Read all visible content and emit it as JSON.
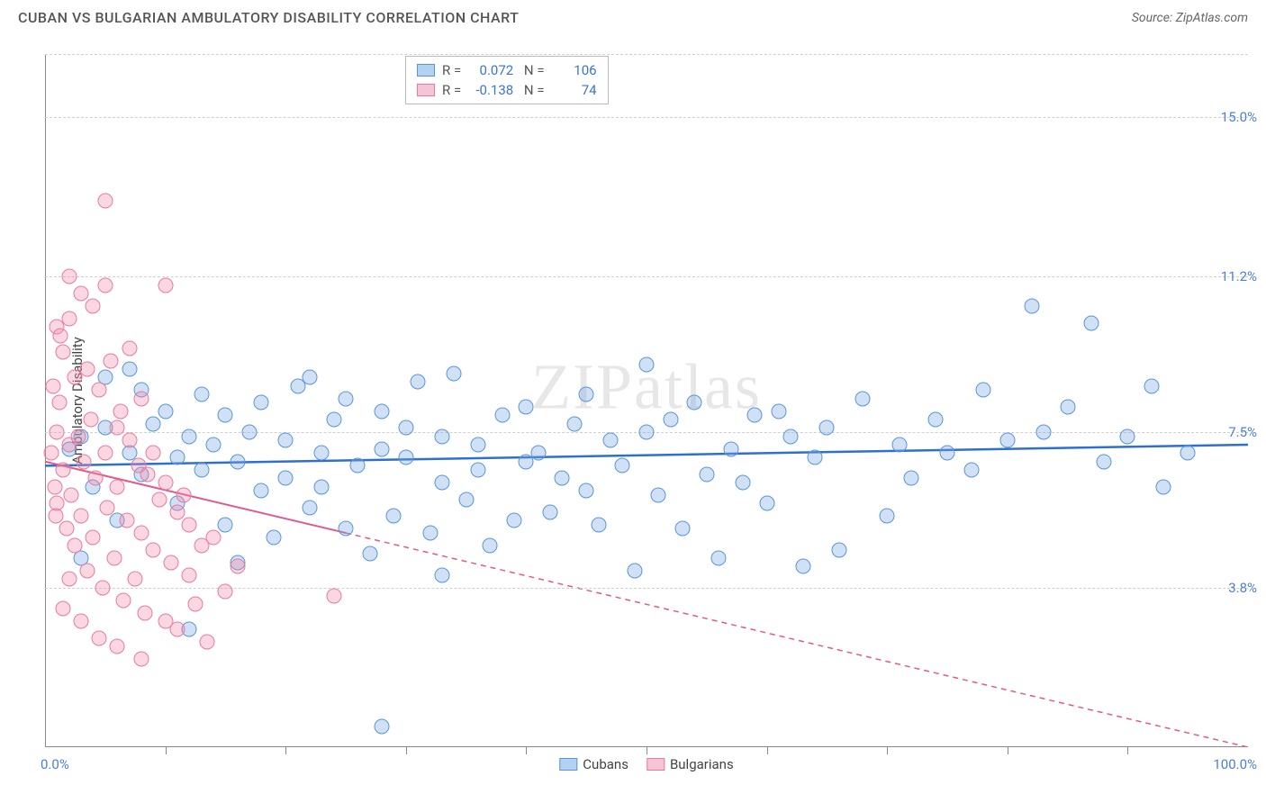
{
  "header": {
    "title": "CUBAN VS BULGARIAN AMBULATORY DISABILITY CORRELATION CHART",
    "source_prefix": "Source: ",
    "source_name": "ZipAtlas.com"
  },
  "chart": {
    "type": "scatter",
    "y_axis_title": "Ambulatory Disability",
    "xlim": [
      0,
      100
    ],
    "ylim": [
      0,
      16.5
    ],
    "x_label_min": "0.0%",
    "x_label_max": "100.0%",
    "x_ticks_pct": [
      10,
      20,
      30,
      40,
      50,
      60,
      70,
      80,
      90
    ],
    "y_gridlines": [
      {
        "value": 3.8,
        "label": "3.8%"
      },
      {
        "value": 7.5,
        "label": "7.5%"
      },
      {
        "value": 11.2,
        "label": "11.2%"
      },
      {
        "value": 15.0,
        "label": "15.0%"
      }
    ],
    "background_color": "#ffffff",
    "grid_color": "#d0d0d0",
    "marker_radius": 8.5,
    "series": [
      {
        "name": "Cubans",
        "color_fill": "rgba(120,170,230,0.35)",
        "color_stroke": "#5a95d8",
        "trend_color": "#2e6fd0",
        "trend_width": 2.5,
        "trend_y_start": 6.7,
        "trend_y_end": 7.2,
        "trend_dash": "solid",
        "legend_R": "0.072",
        "legend_N": "106",
        "points": [
          [
            2,
            7.1
          ],
          [
            3,
            7.4
          ],
          [
            4,
            6.2
          ],
          [
            5,
            7.6
          ],
          [
            6,
            5.4
          ],
          [
            7,
            7.0
          ],
          [
            8,
            8.5
          ],
          [
            8,
            6.5
          ],
          [
            9,
            7.7
          ],
          [
            10,
            8.0
          ],
          [
            11,
            6.9
          ],
          [
            11,
            5.8
          ],
          [
            12,
            7.4
          ],
          [
            13,
            8.4
          ],
          [
            13,
            6.6
          ],
          [
            14,
            7.2
          ],
          [
            15,
            5.3
          ],
          [
            15,
            7.9
          ],
          [
            16,
            6.8
          ],
          [
            17,
            7.5
          ],
          [
            18,
            8.2
          ],
          [
            18,
            6.1
          ],
          [
            19,
            5.0
          ],
          [
            20,
            7.3
          ],
          [
            20,
            6.4
          ],
          [
            21,
            8.6
          ],
          [
            22,
            5.7
          ],
          [
            23,
            7.0
          ],
          [
            23,
            6.2
          ],
          [
            24,
            7.8
          ],
          [
            25,
            5.2
          ],
          [
            25,
            8.3
          ],
          [
            26,
            6.7
          ],
          [
            27,
            4.6
          ],
          [
            28,
            7.1
          ],
          [
            28,
            8.0
          ],
          [
            29,
            5.5
          ],
          [
            30,
            6.9
          ],
          [
            30,
            7.6
          ],
          [
            31,
            8.7
          ],
          [
            32,
            5.1
          ],
          [
            33,
            6.3
          ],
          [
            33,
            7.4
          ],
          [
            34,
            8.9
          ],
          [
            35,
            5.9
          ],
          [
            36,
            6.6
          ],
          [
            36,
            7.2
          ],
          [
            37,
            4.8
          ],
          [
            38,
            7.9
          ],
          [
            39,
            5.4
          ],
          [
            40,
            6.8
          ],
          [
            40,
            8.1
          ],
          [
            41,
            7.0
          ],
          [
            42,
            5.6
          ],
          [
            43,
            6.4
          ],
          [
            44,
            7.7
          ],
          [
            45,
            8.4
          ],
          [
            45,
            6.1
          ],
          [
            46,
            5.3
          ],
          [
            47,
            7.3
          ],
          [
            48,
            6.7
          ],
          [
            49,
            4.2
          ],
          [
            50,
            7.5
          ],
          [
            50,
            9.1
          ],
          [
            51,
            6.0
          ],
          [
            52,
            7.8
          ],
          [
            53,
            5.2
          ],
          [
            54,
            8.2
          ],
          [
            55,
            6.5
          ],
          [
            56,
            4.5
          ],
          [
            57,
            7.1
          ],
          [
            58,
            6.3
          ],
          [
            59,
            7.9
          ],
          [
            60,
            5.8
          ],
          [
            61,
            8.0
          ],
          [
            62,
            7.4
          ],
          [
            63,
            4.3
          ],
          [
            64,
            6.9
          ],
          [
            65,
            7.6
          ],
          [
            66,
            4.7
          ],
          [
            68,
            8.3
          ],
          [
            70,
            5.5
          ],
          [
            71,
            7.2
          ],
          [
            72,
            6.4
          ],
          [
            74,
            7.8
          ],
          [
            75,
            7.0
          ],
          [
            77,
            6.6
          ],
          [
            78,
            8.5
          ],
          [
            80,
            7.3
          ],
          [
            82,
            10.5
          ],
          [
            83,
            7.5
          ],
          [
            85,
            8.1
          ],
          [
            87,
            10.1
          ],
          [
            88,
            6.8
          ],
          [
            90,
            7.4
          ],
          [
            92,
            8.6
          ],
          [
            93,
            6.2
          ],
          [
            95,
            7.0
          ],
          [
            28,
            0.5
          ],
          [
            7,
            9.0
          ],
          [
            12,
            2.8
          ],
          [
            5,
            8.8
          ],
          [
            3,
            4.5
          ],
          [
            16,
            4.4
          ],
          [
            22,
            8.8
          ],
          [
            33,
            4.1
          ]
        ]
      },
      {
        "name": "Bulgarians",
        "color_fill": "rgba(240,140,170,0.35)",
        "color_stroke": "#e87aa0",
        "trend_color": "#e05a8a",
        "trend_width": 2,
        "trend_y_start": 6.8,
        "trend_y_end": 0.0,
        "trend_solid_until_x": 25,
        "trend_dash": "dashed-after-solid",
        "legend_R": "-0.138",
        "legend_N": "74",
        "points": [
          [
            0.5,
            7.0
          ],
          [
            0.8,
            6.2
          ],
          [
            1,
            7.5
          ],
          [
            1,
            5.8
          ],
          [
            1.2,
            8.2
          ],
          [
            1.5,
            6.6
          ],
          [
            1.5,
            9.4
          ],
          [
            1.8,
            5.2
          ],
          [
            2,
            7.2
          ],
          [
            2,
            10.2
          ],
          [
            2.2,
            6.0
          ],
          [
            2.5,
            8.8
          ],
          [
            2.5,
            4.8
          ],
          [
            2.8,
            7.4
          ],
          [
            3,
            10.8
          ],
          [
            3,
            5.5
          ],
          [
            3.2,
            6.8
          ],
          [
            3.5,
            9.0
          ],
          [
            3.5,
            4.2
          ],
          [
            3.8,
            7.8
          ],
          [
            4,
            10.5
          ],
          [
            4,
            5.0
          ],
          [
            4.2,
            6.4
          ],
          [
            4.5,
            8.5
          ],
          [
            4.8,
            3.8
          ],
          [
            5,
            7.0
          ],
          [
            5,
            11.0
          ],
          [
            5.2,
            5.7
          ],
          [
            5.5,
            9.2
          ],
          [
            5.8,
            4.5
          ],
          [
            6,
            7.6
          ],
          [
            6,
            6.2
          ],
          [
            6.3,
            8.0
          ],
          [
            6.5,
            3.5
          ],
          [
            6.8,
            5.4
          ],
          [
            7,
            7.3
          ],
          [
            7,
            9.5
          ],
          [
            7.5,
            4.0
          ],
          [
            7.8,
            6.7
          ],
          [
            8,
            5.1
          ],
          [
            8,
            8.3
          ],
          [
            8.3,
            3.2
          ],
          [
            8.5,
            6.5
          ],
          [
            9,
            7.0
          ],
          [
            9,
            4.7
          ],
          [
            9.5,
            5.9
          ],
          [
            10,
            3.0
          ],
          [
            10,
            6.3
          ],
          [
            10.5,
            4.4
          ],
          [
            11,
            5.6
          ],
          [
            11,
            2.8
          ],
          [
            11.5,
            6.0
          ],
          [
            12,
            4.1
          ],
          [
            12,
            5.3
          ],
          [
            12.5,
            3.4
          ],
          [
            13,
            4.8
          ],
          [
            13.5,
            2.5
          ],
          [
            14,
            5.0
          ],
          [
            15,
            3.7
          ],
          [
            16,
            4.3
          ],
          [
            5,
            13.0
          ],
          [
            10,
            11.0
          ],
          [
            2,
            11.2
          ],
          [
            1,
            10.0
          ],
          [
            24,
            3.6
          ],
          [
            3,
            3.0
          ],
          [
            6,
            2.4
          ],
          [
            8,
            2.1
          ],
          [
            4.5,
            2.6
          ],
          [
            2,
            4.0
          ],
          [
            1.5,
            3.3
          ],
          [
            0.7,
            8.6
          ],
          [
            1.3,
            9.8
          ],
          [
            0.9,
            5.5
          ]
        ]
      }
    ],
    "bottom_legend": [
      {
        "swatch": "blue",
        "label": "Cubans"
      },
      {
        "swatch": "pink",
        "label": "Bulgarians"
      }
    ],
    "watermark": "ZIPatlas"
  }
}
